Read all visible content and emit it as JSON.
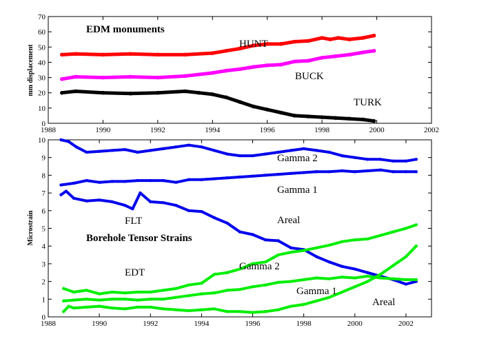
{
  "chart_data": [
    {
      "type": "scatter",
      "xlabel": "",
      "ylabel": "mm displacement",
      "xlim": [
        1988,
        2002
      ],
      "ylim": [
        0,
        70
      ],
      "x_ticks": [
        "1988",
        "1990",
        "1992",
        "1994",
        "1996",
        "1998",
        "2000",
        "2002"
      ],
      "y_ticks": [
        "0",
        "10",
        "20",
        "30",
        "40",
        "50",
        "60",
        "70"
      ],
      "annotations": [
        {
          "id": "title",
          "text": "EDM monuments",
          "bold": true
        },
        {
          "id": "hunt",
          "text": "HUNT"
        },
        {
          "id": "buck",
          "text": "BUCK"
        },
        {
          "id": "turk",
          "text": "TURK"
        }
      ],
      "series": [
        {
          "name": "HUNT",
          "color": "#ff0000",
          "x": [
            1988.5,
            1989.0,
            1990.0,
            1991.0,
            1992.0,
            1993.0,
            1994.0,
            1994.5,
            1995.0,
            1995.5,
            1996.0,
            1996.5,
            1997.0,
            1997.5,
            1998.0,
            1998.3,
            1998.6,
            1999.0,
            1999.5,
            1999.9
          ],
          "y": [
            45,
            45.5,
            45,
            45.5,
            45,
            45,
            46,
            47.5,
            49,
            51,
            52,
            52,
            53.5,
            54,
            56,
            55,
            56,
            55,
            56,
            57.5
          ]
        },
        {
          "name": "BUCK",
          "color": "#ff00ff",
          "x": [
            1988.5,
            1989.0,
            1990.0,
            1991.0,
            1992.0,
            1993.0,
            1994.0,
            1994.5,
            1995.0,
            1995.5,
            1996.0,
            1996.5,
            1997.0,
            1997.5,
            1998.0,
            1998.5,
            1999.0,
            1999.5,
            1999.9
          ],
          "y": [
            29,
            30.5,
            30,
            30.5,
            30,
            31,
            33,
            34.5,
            35.5,
            37,
            38,
            38.5,
            40.5,
            41,
            43,
            44,
            45,
            46.5,
            47.5
          ]
        },
        {
          "name": "TURK",
          "color": "#000000",
          "x": [
            1988.5,
            1989.0,
            1990.0,
            1991.0,
            1992.0,
            1993.0,
            1993.5,
            1994.0,
            1994.5,
            1995.0,
            1995.5,
            1996.0,
            1996.5,
            1997.0,
            1997.5,
            1998.0,
            1998.5,
            1999.0,
            1999.5,
            1999.9
          ],
          "y": [
            20,
            21,
            20,
            19.5,
            20,
            21,
            20,
            19,
            17,
            14,
            11,
            9,
            7,
            5,
            4.5,
            4,
            3.5,
            3,
            2.5,
            1.5
          ]
        }
      ]
    },
    {
      "type": "line",
      "xlabel": "",
      "ylabel": "Microstrain",
      "xlim": [
        1988,
        2003
      ],
      "ylim": [
        0,
        10
      ],
      "x_ticks": [
        "1988",
        "1990",
        "1992",
        "1994",
        "1996",
        "1998",
        "2000",
        "2002"
      ],
      "y_ticks": [
        "0",
        "1",
        "2",
        "3",
        "4",
        "5",
        "6",
        "7",
        "8",
        "9",
        "10"
      ],
      "annotations": [
        {
          "id": "title",
          "text": "Borehole Tensor Strains",
          "bold": true
        },
        {
          "id": "flt",
          "text": "FLT"
        },
        {
          "id": "edt",
          "text": "EDT"
        },
        {
          "id": "flt_g2",
          "text": "Gamma 2"
        },
        {
          "id": "flt_g1",
          "text": "Gamma 1"
        },
        {
          "id": "flt_areal",
          "text": "Areal"
        },
        {
          "id": "edt_g2",
          "text": "Gamma 2"
        },
        {
          "id": "edt_g1",
          "text": "Gamma 1"
        },
        {
          "id": "edt_areal",
          "text": "Areal"
        }
      ],
      "series": [
        {
          "name": "FLT Gamma 2",
          "color": "#0000ee",
          "x": [
            1988.5,
            1988.8,
            1989.1,
            1989.5,
            1990.0,
            1990.5,
            1991.0,
            1991.5,
            1992.0,
            1992.5,
            1993.0,
            1993.5,
            1994.0,
            1994.5,
            1995.0,
            1995.5,
            1996.0,
            1996.5,
            1997.0,
            1997.5,
            1998.0,
            1998.5,
            1999.0,
            1999.5,
            2000.0,
            2000.5,
            2001.0,
            2001.5,
            2002.0,
            2002.4
          ],
          "y": [
            10.0,
            9.9,
            9.6,
            9.3,
            9.35,
            9.4,
            9.45,
            9.3,
            9.4,
            9.5,
            9.6,
            9.7,
            9.6,
            9.4,
            9.2,
            9.1,
            9.1,
            9.2,
            9.3,
            9.4,
            9.5,
            9.4,
            9.3,
            9.1,
            9.0,
            8.9,
            8.9,
            8.8,
            8.8,
            8.9
          ]
        },
        {
          "name": "FLT Gamma 1",
          "color": "#0000ee",
          "x": [
            1988.5,
            1989.0,
            1989.5,
            1990.0,
            1990.5,
            1991.0,
            1991.5,
            1992.0,
            1992.5,
            1993.0,
            1993.5,
            1994.0,
            1994.5,
            1995.0,
            1995.5,
            1996.0,
            1996.5,
            1997.0,
            1997.5,
            1998.0,
            1998.5,
            1999.0,
            1999.5,
            2000.0,
            2000.5,
            2001.0,
            2001.5,
            2002.0,
            2002.4
          ],
          "y": [
            7.45,
            7.55,
            7.7,
            7.6,
            7.65,
            7.65,
            7.7,
            7.7,
            7.7,
            7.6,
            7.75,
            7.75,
            7.8,
            7.85,
            7.9,
            7.95,
            8.0,
            8.05,
            8.1,
            8.15,
            8.2,
            8.2,
            8.25,
            8.2,
            8.25,
            8.3,
            8.2,
            8.2,
            8.2
          ]
        },
        {
          "name": "FLT Areal",
          "color": "#0000ee",
          "x": [
            1988.5,
            1988.7,
            1989.0,
            1989.5,
            1990.0,
            1990.5,
            1991.0,
            1991.3,
            1991.6,
            1992.0,
            1992.5,
            1993.0,
            1993.5,
            1994.0,
            1994.5,
            1995.0,
            1995.5,
            1996.0,
            1996.5,
            1997.0,
            1997.5,
            1998.0,
            1998.5,
            1999.0,
            1999.5,
            2000.0,
            2000.5,
            2001.0,
            2001.5,
            2002.0,
            2002.4
          ],
          "y": [
            6.9,
            7.1,
            6.7,
            6.55,
            6.6,
            6.5,
            6.3,
            6.1,
            7.0,
            6.5,
            6.45,
            6.3,
            6.0,
            5.95,
            5.6,
            5.3,
            4.8,
            4.65,
            4.35,
            4.3,
            3.9,
            3.8,
            3.4,
            3.1,
            2.85,
            2.7,
            2.5,
            2.3,
            2.1,
            1.85,
            2.0
          ]
        },
        {
          "name": "EDT Areal",
          "color": "#00ee00",
          "x": [
            1988.6,
            1989.0,
            1989.5,
            1990.0,
            1990.5,
            1991.0,
            1991.5,
            1992.0,
            1992.5,
            1993.0,
            1993.5,
            1994.0,
            1994.5,
            1995.0,
            1995.5,
            1996.0,
            1996.5,
            1997.0,
            1997.5,
            1998.0,
            1998.5,
            1999.0,
            1999.5,
            2000.0,
            2000.5,
            2001.0,
            2001.5,
            2002.0,
            2002.4
          ],
          "y": [
            1.6,
            1.4,
            1.5,
            1.3,
            1.4,
            1.35,
            1.4,
            1.4,
            1.5,
            1.6,
            1.8,
            1.9,
            2.4,
            2.5,
            2.7,
            3.0,
            3.1,
            3.5,
            3.65,
            3.75,
            3.9,
            4.05,
            4.25,
            4.35,
            4.4,
            4.6,
            4.8,
            5.0,
            5.2
          ]
        },
        {
          "name": "EDT Gamma 1",
          "color": "#00ee00",
          "x": [
            1988.6,
            1989.0,
            1989.5,
            1990.0,
            1990.5,
            1991.0,
            1991.5,
            1992.0,
            1992.5,
            1993.0,
            1993.5,
            1994.0,
            1994.5,
            1995.0,
            1995.5,
            1996.0,
            1996.5,
            1997.0,
            1997.5,
            1998.0,
            1998.5,
            1999.0,
            1999.5,
            2000.0,
            2000.5,
            2001.0,
            2001.5,
            2002.0,
            2002.4
          ],
          "y": [
            0.9,
            0.95,
            1.0,
            0.95,
            1.0,
            1.0,
            0.95,
            1.0,
            1.0,
            1.1,
            1.2,
            1.3,
            1.35,
            1.5,
            1.55,
            1.7,
            1.8,
            1.95,
            2.0,
            2.1,
            2.2,
            2.15,
            2.25,
            2.2,
            2.3,
            2.2,
            2.15,
            2.1,
            2.1
          ]
        },
        {
          "name": "EDT Gamma 2",
          "color": "#00ee00",
          "x": [
            1988.6,
            1988.8,
            1989.0,
            1989.5,
            1990.0,
            1990.5,
            1991.0,
            1991.5,
            1992.0,
            1992.5,
            1993.0,
            1993.5,
            1994.0,
            1994.5,
            1995.0,
            1995.5,
            1996.0,
            1996.5,
            1997.0,
            1997.5,
            1998.0,
            1998.5,
            1999.0,
            1999.5,
            2000.0,
            2000.5,
            2001.0,
            2001.5,
            2002.0,
            2002.4
          ],
          "y": [
            0.3,
            0.6,
            0.5,
            0.55,
            0.6,
            0.5,
            0.45,
            0.55,
            0.55,
            0.45,
            0.4,
            0.35,
            0.4,
            0.45,
            0.3,
            0.3,
            0.25,
            0.3,
            0.4,
            0.6,
            0.7,
            0.9,
            1.1,
            1.4,
            1.7,
            2.0,
            2.4,
            2.9,
            3.4,
            4.0
          ]
        }
      ]
    }
  ]
}
